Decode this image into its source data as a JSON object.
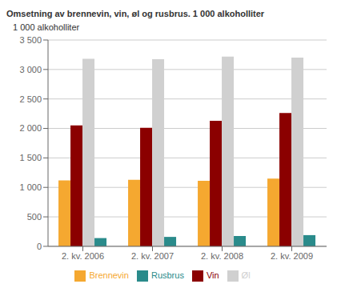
{
  "chart_data": {
    "type": "bar",
    "title": "Omsetning av brennevin, vin, øl og rusbrus. 1 000 alkoholliter",
    "y_label": "1 000 alkoholliter",
    "categories": [
      "2. kv. 2006",
      "2. kv. 2007",
      "2. kv. 2008",
      "2. kv. 2009"
    ],
    "series": [
      {
        "name": "Brennevin",
        "color": "#F5A830",
        "values": [
          1120,
          1130,
          1110,
          1150
        ]
      },
      {
        "name": "Vin",
        "color": "#8B0000",
        "values": [
          2050,
          2010,
          2130,
          2260
        ]
      },
      {
        "name": "Øl",
        "color": "#D0D0D0",
        "values": [
          3180,
          3175,
          3220,
          3200
        ]
      },
      {
        "name": "Rusbrus",
        "color": "#2A8B8B",
        "values": [
          140,
          160,
          175,
          190
        ]
      }
    ],
    "ylim": [
      0,
      3500
    ],
    "yticks": [
      0,
      500,
      {
        "value": 1000,
        "label": "1 000"
      },
      {
        "value": 1500,
        "label": "1 500"
      },
      {
        "value": 2000,
        "label": "2 000"
      },
      {
        "value": 2500,
        "label": "2 500"
      },
      {
        "value": 3000,
        "label": "3 000"
      },
      {
        "value": 3500,
        "label": "3 500"
      }
    ],
    "grid": true,
    "legend": "bottom"
  }
}
